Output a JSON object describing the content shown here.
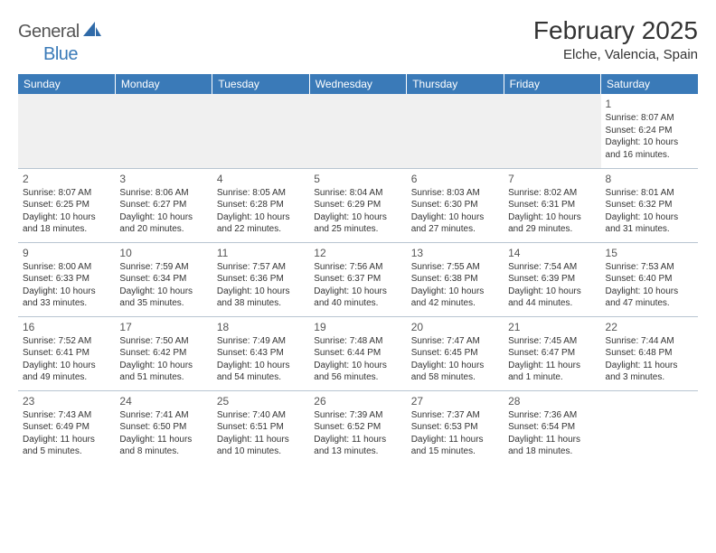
{
  "brand": {
    "part1": "General",
    "part2": "Blue"
  },
  "title": {
    "month": "February 2025",
    "location": "Elche, Valencia, Spain"
  },
  "header_bg": "#3a7ab8",
  "days": [
    "Sunday",
    "Monday",
    "Tuesday",
    "Wednesday",
    "Thursday",
    "Friday",
    "Saturday"
  ],
  "weeks": [
    [
      null,
      null,
      null,
      null,
      null,
      null,
      {
        "n": "1",
        "sunrise": "Sunrise: 8:07 AM",
        "sunset": "Sunset: 6:24 PM",
        "day1": "Daylight: 10 hours",
        "day2": "and 16 minutes."
      }
    ],
    [
      {
        "n": "2",
        "sunrise": "Sunrise: 8:07 AM",
        "sunset": "Sunset: 6:25 PM",
        "day1": "Daylight: 10 hours",
        "day2": "and 18 minutes."
      },
      {
        "n": "3",
        "sunrise": "Sunrise: 8:06 AM",
        "sunset": "Sunset: 6:27 PM",
        "day1": "Daylight: 10 hours",
        "day2": "and 20 minutes."
      },
      {
        "n": "4",
        "sunrise": "Sunrise: 8:05 AM",
        "sunset": "Sunset: 6:28 PM",
        "day1": "Daylight: 10 hours",
        "day2": "and 22 minutes."
      },
      {
        "n": "5",
        "sunrise": "Sunrise: 8:04 AM",
        "sunset": "Sunset: 6:29 PM",
        "day1": "Daylight: 10 hours",
        "day2": "and 25 minutes."
      },
      {
        "n": "6",
        "sunrise": "Sunrise: 8:03 AM",
        "sunset": "Sunset: 6:30 PM",
        "day1": "Daylight: 10 hours",
        "day2": "and 27 minutes."
      },
      {
        "n": "7",
        "sunrise": "Sunrise: 8:02 AM",
        "sunset": "Sunset: 6:31 PM",
        "day1": "Daylight: 10 hours",
        "day2": "and 29 minutes."
      },
      {
        "n": "8",
        "sunrise": "Sunrise: 8:01 AM",
        "sunset": "Sunset: 6:32 PM",
        "day1": "Daylight: 10 hours",
        "day2": "and 31 minutes."
      }
    ],
    [
      {
        "n": "9",
        "sunrise": "Sunrise: 8:00 AM",
        "sunset": "Sunset: 6:33 PM",
        "day1": "Daylight: 10 hours",
        "day2": "and 33 minutes."
      },
      {
        "n": "10",
        "sunrise": "Sunrise: 7:59 AM",
        "sunset": "Sunset: 6:34 PM",
        "day1": "Daylight: 10 hours",
        "day2": "and 35 minutes."
      },
      {
        "n": "11",
        "sunrise": "Sunrise: 7:57 AM",
        "sunset": "Sunset: 6:36 PM",
        "day1": "Daylight: 10 hours",
        "day2": "and 38 minutes."
      },
      {
        "n": "12",
        "sunrise": "Sunrise: 7:56 AM",
        "sunset": "Sunset: 6:37 PM",
        "day1": "Daylight: 10 hours",
        "day2": "and 40 minutes."
      },
      {
        "n": "13",
        "sunrise": "Sunrise: 7:55 AM",
        "sunset": "Sunset: 6:38 PM",
        "day1": "Daylight: 10 hours",
        "day2": "and 42 minutes."
      },
      {
        "n": "14",
        "sunrise": "Sunrise: 7:54 AM",
        "sunset": "Sunset: 6:39 PM",
        "day1": "Daylight: 10 hours",
        "day2": "and 44 minutes."
      },
      {
        "n": "15",
        "sunrise": "Sunrise: 7:53 AM",
        "sunset": "Sunset: 6:40 PM",
        "day1": "Daylight: 10 hours",
        "day2": "and 47 minutes."
      }
    ],
    [
      {
        "n": "16",
        "sunrise": "Sunrise: 7:52 AM",
        "sunset": "Sunset: 6:41 PM",
        "day1": "Daylight: 10 hours",
        "day2": "and 49 minutes."
      },
      {
        "n": "17",
        "sunrise": "Sunrise: 7:50 AM",
        "sunset": "Sunset: 6:42 PM",
        "day1": "Daylight: 10 hours",
        "day2": "and 51 minutes."
      },
      {
        "n": "18",
        "sunrise": "Sunrise: 7:49 AM",
        "sunset": "Sunset: 6:43 PM",
        "day1": "Daylight: 10 hours",
        "day2": "and 54 minutes."
      },
      {
        "n": "19",
        "sunrise": "Sunrise: 7:48 AM",
        "sunset": "Sunset: 6:44 PM",
        "day1": "Daylight: 10 hours",
        "day2": "and 56 minutes."
      },
      {
        "n": "20",
        "sunrise": "Sunrise: 7:47 AM",
        "sunset": "Sunset: 6:45 PM",
        "day1": "Daylight: 10 hours",
        "day2": "and 58 minutes."
      },
      {
        "n": "21",
        "sunrise": "Sunrise: 7:45 AM",
        "sunset": "Sunset: 6:47 PM",
        "day1": "Daylight: 11 hours",
        "day2": "and 1 minute."
      },
      {
        "n": "22",
        "sunrise": "Sunrise: 7:44 AM",
        "sunset": "Sunset: 6:48 PM",
        "day1": "Daylight: 11 hours",
        "day2": "and 3 minutes."
      }
    ],
    [
      {
        "n": "23",
        "sunrise": "Sunrise: 7:43 AM",
        "sunset": "Sunset: 6:49 PM",
        "day1": "Daylight: 11 hours",
        "day2": "and 5 minutes."
      },
      {
        "n": "24",
        "sunrise": "Sunrise: 7:41 AM",
        "sunset": "Sunset: 6:50 PM",
        "day1": "Daylight: 11 hours",
        "day2": "and 8 minutes."
      },
      {
        "n": "25",
        "sunrise": "Sunrise: 7:40 AM",
        "sunset": "Sunset: 6:51 PM",
        "day1": "Daylight: 11 hours",
        "day2": "and 10 minutes."
      },
      {
        "n": "26",
        "sunrise": "Sunrise: 7:39 AM",
        "sunset": "Sunset: 6:52 PM",
        "day1": "Daylight: 11 hours",
        "day2": "and 13 minutes."
      },
      {
        "n": "27",
        "sunrise": "Sunrise: 7:37 AM",
        "sunset": "Sunset: 6:53 PM",
        "day1": "Daylight: 11 hours",
        "day2": "and 15 minutes."
      },
      {
        "n": "28",
        "sunrise": "Sunrise: 7:36 AM",
        "sunset": "Sunset: 6:54 PM",
        "day1": "Daylight: 11 hours",
        "day2": "and 18 minutes."
      },
      null
    ]
  ]
}
